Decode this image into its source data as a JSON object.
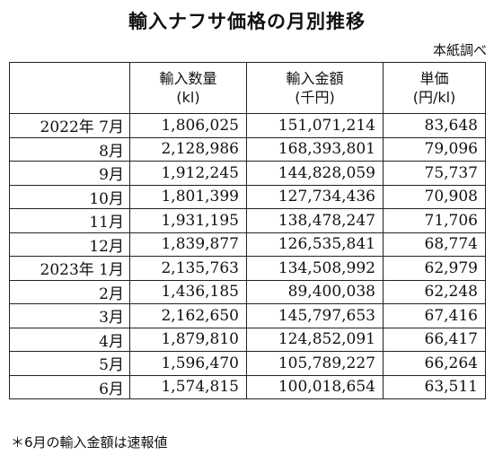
{
  "title": "輸入ナフサ価格の月別推移",
  "source": "本紙調べ",
  "columns": [
    {
      "name": "輸入数量",
      "unit": "(kl)"
    },
    {
      "name": "輸入金額",
      "unit": "(千円)"
    },
    {
      "name": "単価",
      "unit": "(円/kl)"
    }
  ],
  "rows": [
    {
      "period": "2022年 7月",
      "volume": "1,806,025",
      "amount": "151,071,214",
      "unit_price": "83,648"
    },
    {
      "period": "8月",
      "volume": "2,128,986",
      "amount": "168,393,801",
      "unit_price": "79,096"
    },
    {
      "period": "9月",
      "volume": "1,912,245",
      "amount": "144,828,059",
      "unit_price": "75,737"
    },
    {
      "period": "10月",
      "volume": "1,801,399",
      "amount": "127,734,436",
      "unit_price": "70,908"
    },
    {
      "period": "11月",
      "volume": "1,931,195",
      "amount": "138,478,247",
      "unit_price": "71,706"
    },
    {
      "period": "12月",
      "volume": "1,839,877",
      "amount": "126,535,841",
      "unit_price": "68,774"
    },
    {
      "period": "2023年 1月",
      "volume": "2,135,763",
      "amount": "134,508,992",
      "unit_price": "62,979"
    },
    {
      "period": "2月",
      "volume": "1,436,185",
      "amount": "89,400,038",
      "unit_price": "62,248"
    },
    {
      "period": "3月",
      "volume": "2,162,650",
      "amount": "145,797,653",
      "unit_price": "67,416"
    },
    {
      "period": "4月",
      "volume": "1,879,810",
      "amount": "124,852,091",
      "unit_price": "66,417"
    },
    {
      "period": "5月",
      "volume": "1,596,470",
      "amount": "105,789,227",
      "unit_price": "66,264"
    },
    {
      "period": "6月",
      "volume": "1,574,815",
      "amount": "100,018,654",
      "unit_price": "63,511"
    }
  ],
  "footnote": "＊6月の輸入金額は速報値"
}
